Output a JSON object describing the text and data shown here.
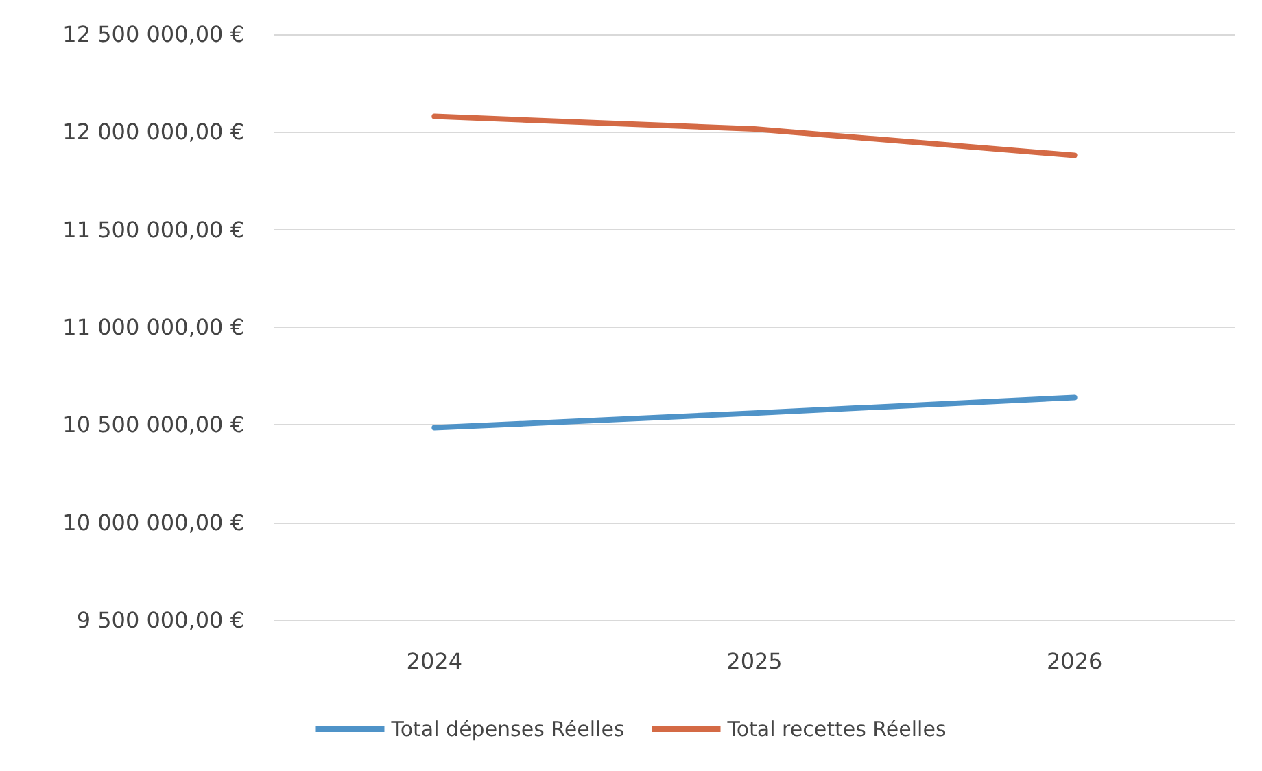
{
  "chart_data": {
    "type": "line",
    "categories": [
      "2024",
      "2025",
      "2026"
    ],
    "series": [
      {
        "name": "Total dépenses Réelles",
        "color": "#4f93c8",
        "values": [
          10485000,
          10560000,
          10640000
        ]
      },
      {
        "name": "Total recettes Réelles",
        "color": "#d46a45",
        "values": [
          12080000,
          12015000,
          11880000
        ]
      }
    ],
    "ylim": [
      9500000,
      12500000
    ],
    "yticks": [
      {
        "value": 9500000,
        "label": "9 500 000,00 €"
      },
      {
        "value": 10000000,
        "label": "10 000 000,00 €"
      },
      {
        "value": 10500000,
        "label": "10 500 000,00 €"
      },
      {
        "value": 11000000,
        "label": "11 000 000,00 €"
      },
      {
        "value": 11500000,
        "label": "11 500 000,00 €"
      },
      {
        "value": 12000000,
        "label": "12 000 000,00 €"
      },
      {
        "value": 12500000,
        "label": "12 500 000,00 €"
      }
    ],
    "grid": "y",
    "legend": "bottom",
    "marker": "none",
    "line_style": "solid"
  }
}
